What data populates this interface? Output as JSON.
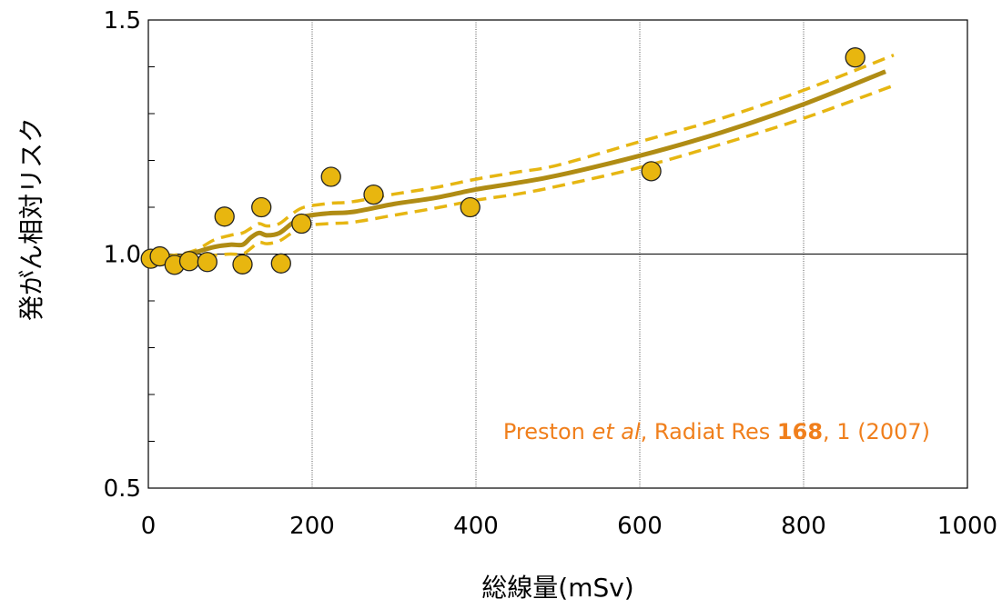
{
  "chart_data": {
    "type": "scatter",
    "xlabel": "総線量(mSv)",
    "ylabel": "発がん相対リスク",
    "xlim": [
      0,
      1000
    ],
    "ylim": [
      0.5,
      1.5
    ],
    "x_ticks": [
      "0",
      "200",
      "400",
      "600",
      "800",
      "1000"
    ],
    "y_ticks": [
      "0.5",
      "1.0",
      "1.5"
    ],
    "grid": "vertical dotted lines at 200, 400, 600, 800",
    "reference_line_y": 1.0,
    "points": [
      {
        "x": 3,
        "y": 0.99
      },
      {
        "x": 14,
        "y": 0.995
      },
      {
        "x": 32,
        "y": 0.977
      },
      {
        "x": 50,
        "y": 0.985
      },
      {
        "x": 72,
        "y": 0.983
      },
      {
        "x": 93,
        "y": 1.08
      },
      {
        "x": 115,
        "y": 0.978
      },
      {
        "x": 138,
        "y": 1.1
      },
      {
        "x": 162,
        "y": 0.98
      },
      {
        "x": 187,
        "y": 1.065
      },
      {
        "x": 223,
        "y": 1.165
      },
      {
        "x": 275,
        "y": 1.127
      },
      {
        "x": 393,
        "y": 1.1
      },
      {
        "x": 614,
        "y": 1.177
      },
      {
        "x": 863,
        "y": 1.42
      }
    ],
    "fit_curve": {
      "x": [
        0,
        20,
        40,
        60,
        80,
        100,
        115,
        125,
        135,
        145,
        160,
        175,
        190,
        220,
        250,
        300,
        350,
        400,
        450,
        500,
        600,
        700,
        800,
        900
      ],
      "y": [
        0.99,
        0.99,
        0.995,
        1.005,
        1.015,
        1.02,
        1.02,
        1.035,
        1.045,
        1.04,
        1.045,
        1.065,
        1.08,
        1.087,
        1.09,
        1.107,
        1.12,
        1.138,
        1.152,
        1.168,
        1.21,
        1.26,
        1.32,
        1.39
      ]
    },
    "ci_upper": {
      "x": [
        20,
        40,
        60,
        80,
        100,
        115,
        125,
        135,
        145,
        160,
        175,
        190,
        220,
        250,
        300,
        350,
        400,
        450,
        500,
        600,
        700,
        800,
        910
      ],
      "y": [
        0.995,
        1.0,
        1.01,
        1.03,
        1.04,
        1.045,
        1.055,
        1.065,
        1.06,
        1.065,
        1.085,
        1.1,
        1.108,
        1.112,
        1.128,
        1.142,
        1.16,
        1.175,
        1.19,
        1.24,
        1.29,
        1.35,
        1.425
      ]
    },
    "ci_lower": {
      "x": [
        20,
        40,
        60,
        80,
        100,
        115,
        125,
        135,
        145,
        160,
        175,
        190,
        220,
        250,
        300,
        350,
        400,
        450,
        500,
        600,
        700,
        800,
        910
      ],
      "y": [
        0.985,
        0.988,
        0.992,
        0.997,
        1.0,
        1.0,
        1.012,
        1.025,
        1.022,
        1.028,
        1.045,
        1.06,
        1.065,
        1.068,
        1.083,
        1.098,
        1.115,
        1.128,
        1.145,
        1.185,
        1.235,
        1.29,
        1.36
      ]
    },
    "annotation": {
      "prefix": "Preston ",
      "italic": "et al",
      "middle": ", Radiat Res ",
      "bold": "168",
      "suffix": ", 1 (2007)"
    },
    "colors": {
      "point_fill": "#e8b60f",
      "point_stroke": "#222222",
      "fit_line": "#b08c14",
      "ci_line": "#e6b612",
      "annotation": "#f07f1c",
      "grid": "#555555"
    }
  }
}
